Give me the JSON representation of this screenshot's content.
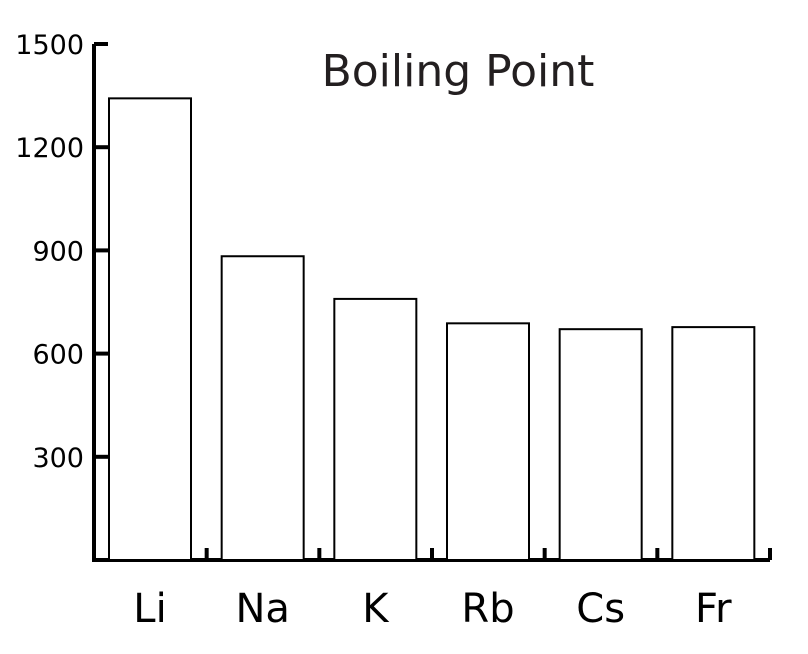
{
  "chart_data": {
    "type": "bar",
    "title": "Boiling Point",
    "xlabel": "",
    "ylabel": "",
    "categories": [
      "Li",
      "Na",
      "K",
      "Rb",
      "Cs",
      "Fr"
    ],
    "values": [
      1342,
      883,
      759,
      688,
      671,
      677
    ],
    "ylim": [
      0,
      1500
    ],
    "yticks": [
      300,
      600,
      900,
      1200,
      1500
    ],
    "grid": false,
    "bar_fill": "#ffffff",
    "bar_stroke": "#000000"
  }
}
